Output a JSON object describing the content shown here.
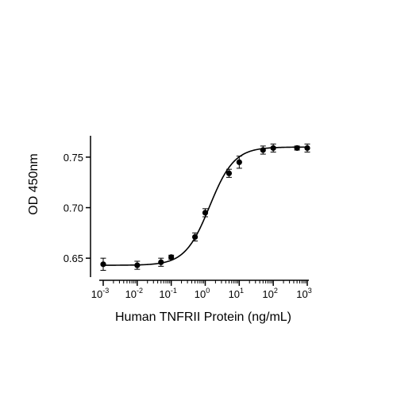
{
  "chart_data": {
    "type": "scatter",
    "title": "",
    "xlabel": "Human TNFRII Protein (ng/mL)",
    "ylabel": "OD 450nm",
    "xscale": "log",
    "xlim": [
      0.001,
      1000
    ],
    "ylim": [
      0.636,
      0.768
    ],
    "grid": false,
    "x_ticks": [
      0.001,
      0.01,
      0.1,
      1,
      10,
      100,
      1000
    ],
    "x_tick_labels": [
      {
        "base": "10",
        "exp": "-3"
      },
      {
        "base": "10",
        "exp": "-2"
      },
      {
        "base": "10",
        "exp": "-1"
      },
      {
        "base": "10",
        "exp": "0"
      },
      {
        "base": "10",
        "exp": "1"
      },
      {
        "base": "10",
        "exp": "2"
      },
      {
        "base": "10",
        "exp": "3"
      }
    ],
    "y_ticks": [
      0.65,
      0.7,
      0.75
    ],
    "y_tick_labels": [
      "0.65",
      "0.70",
      "0.75"
    ],
    "series": [
      {
        "marker": "circle",
        "color": "#000000",
        "x": [
          0.001,
          0.01,
          0.05,
          0.1,
          0.5,
          1,
          5,
          10,
          50,
          100,
          500,
          1000
        ],
        "y": [
          0.644,
          0.643,
          0.646,
          0.651,
          0.671,
          0.695,
          0.734,
          0.745,
          0.757,
          0.759,
          0.759,
          0.759
        ],
        "error": [
          0.006,
          0.004,
          0.004,
          0.002,
          0.004,
          0.004,
          0.004,
          0.006,
          0.004,
          0.004,
          0.002,
          0.004
        ]
      }
    ],
    "fit_curve": {
      "model": "4PL",
      "bottom": 0.643,
      "top": 0.76,
      "ec50": 1.35,
      "hill": 1.2,
      "color": "#000000"
    }
  }
}
